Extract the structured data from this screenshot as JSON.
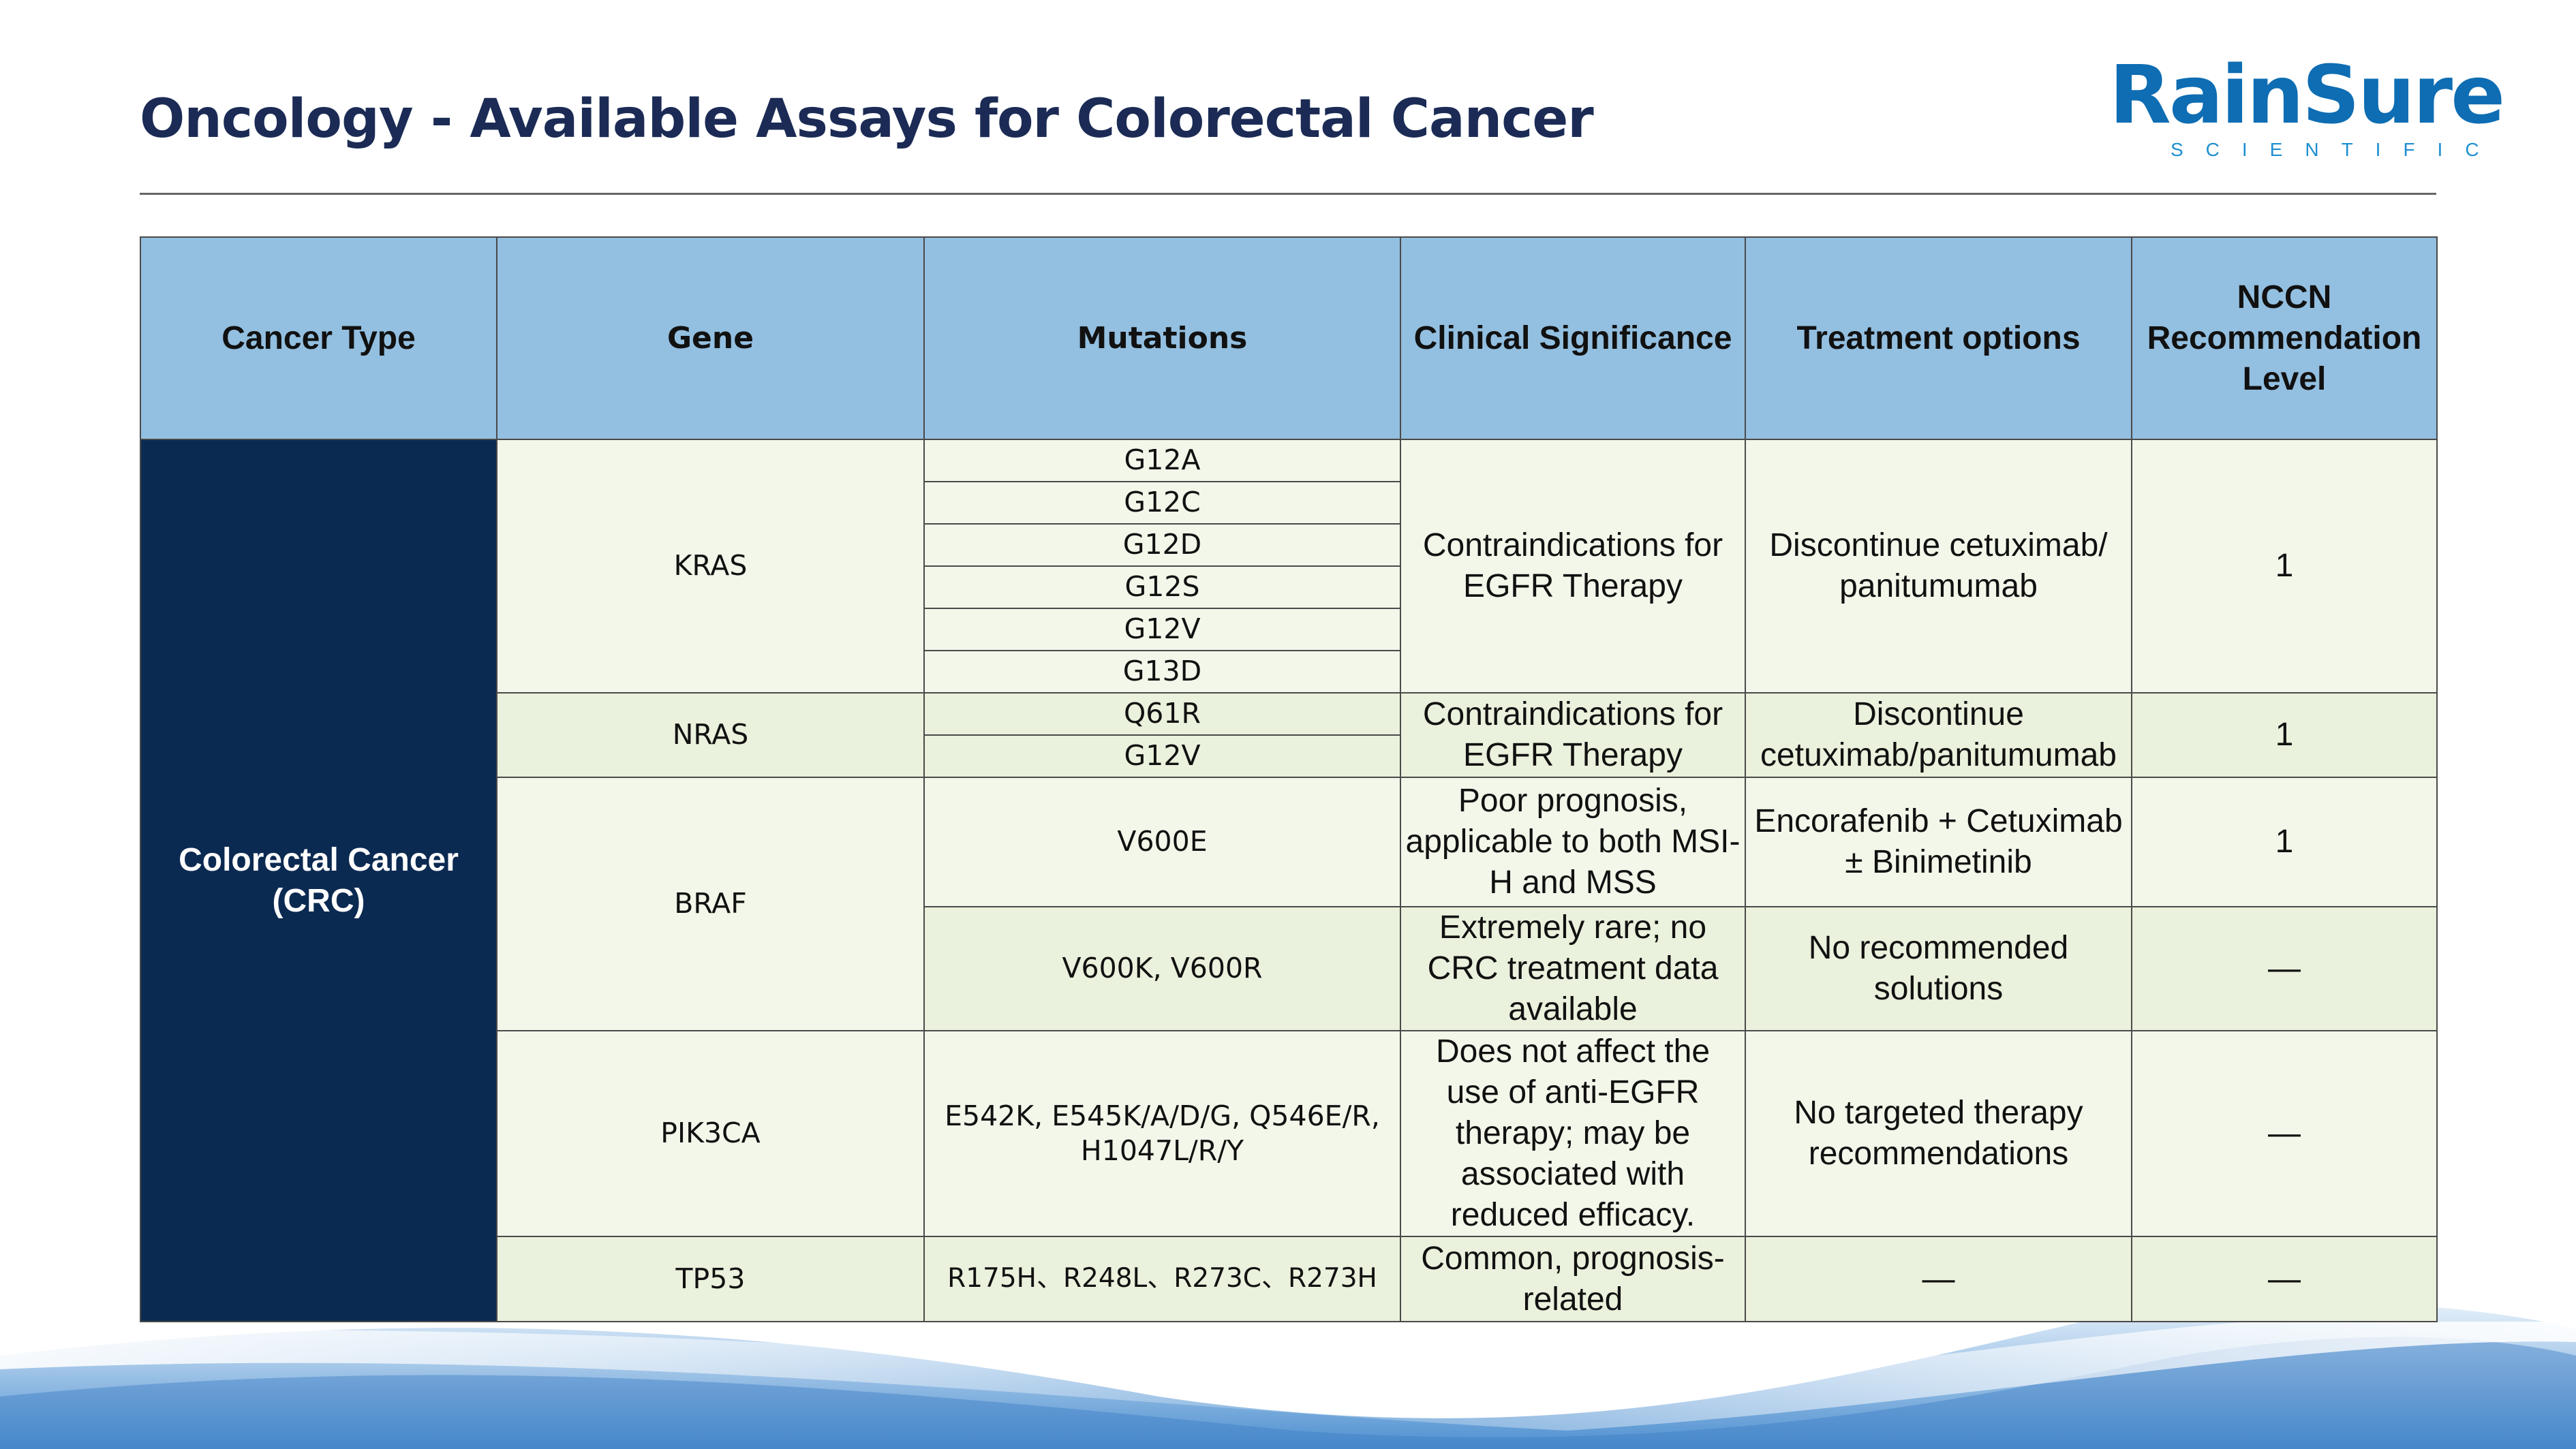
{
  "title": "Oncology - Available Assays for Colorectal Cancer",
  "logo": {
    "name": "RainSure",
    "tagline": "SCIENTIFIC"
  },
  "table": {
    "headers": [
      "Cancer Type",
      "Gene",
      "Mutations",
      "Clinical Significance",
      "Treatment options",
      "NCCN Recommendation Level"
    ],
    "cancer_type": "Colorectal Cancer (CRC)",
    "kras": {
      "gene": "KRAS",
      "mutations": [
        "G12A",
        "G12C",
        "G12D",
        "G12S",
        "G12V",
        "G13D"
      ],
      "significance": "Contraindications for EGFR Therapy",
      "treatment": "Discontinue cetuximab/ panitumumab",
      "level": "1"
    },
    "nras": {
      "gene": "NRAS",
      "mutations": [
        "Q61R",
        "G12V"
      ],
      "significance": "Contraindications for EGFR Therapy",
      "treatment": "Discontinue cetuximab/panitumumab",
      "level": "1"
    },
    "braf": {
      "gene": "BRAF",
      "rows": [
        {
          "mutations": "V600E",
          "significance": "Poor prognosis, applicable to both MSI-H and MSS",
          "treatment": "Encorafenib + Cetuximab ± Binimetinib",
          "level": "1"
        },
        {
          "mutations": "V600K, V600R",
          "significance": "Extremely rare; no CRC treatment data available",
          "treatment": "No recommended solutions",
          "level": "—"
        }
      ]
    },
    "pik3ca": {
      "gene": "PIK3CA",
      "mutations": "E542K, E545K/A/D/G, Q546E/R, H1047L/R/Y",
      "significance": "Does not affect the use of anti-EGFR therapy; may be associated with reduced efficacy.",
      "treatment": "No targeted therapy recommendations",
      "level": "—"
    },
    "tp53": {
      "gene": "TP53",
      "mutations": "R175H、R248L、R273C、R273H",
      "significance": "Common, prognosis-related",
      "treatment": "—",
      "level": "—"
    }
  }
}
